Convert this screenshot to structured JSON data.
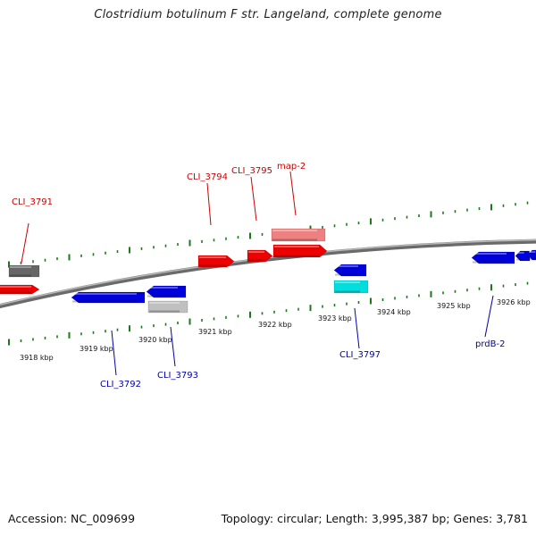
{
  "title": "Clostridium botulinum F str. Langeland, complete genome",
  "footer": {
    "accession": "Accession: NC_009699",
    "summary": "Topology: circular; Length: 3,995,387 bp; Genes: 3,781"
  },
  "colors": {
    "forward_gene": "#ee0000",
    "forward_gene_light": "#ee8080",
    "reverse_gene": "#0000dd",
    "reverse_gene_cyan": "#00dddd",
    "gray_gene": "#666666",
    "light_gray_gene": "#c0c0c0",
    "tick": "#1a7a1a",
    "backbone": "#888888",
    "forward_label": "#cc0000",
    "reverse_label": "#0000aa"
  },
  "scale": {
    "labels": [
      "3918 kbp",
      "3919 kbp",
      "3920 kbp",
      "3921 kbp",
      "3922 kbp",
      "3923 kbp",
      "3924 kbp",
      "3925 kbp",
      "3926 kbp"
    ]
  },
  "labels": {
    "forward": [
      "CLI_3791",
      "CLI_3794",
      "CLI_3795",
      "map-2"
    ],
    "reverse": [
      "CLI_3792",
      "CLI_3793",
      "CLI_3797",
      "prdB-2"
    ]
  }
}
